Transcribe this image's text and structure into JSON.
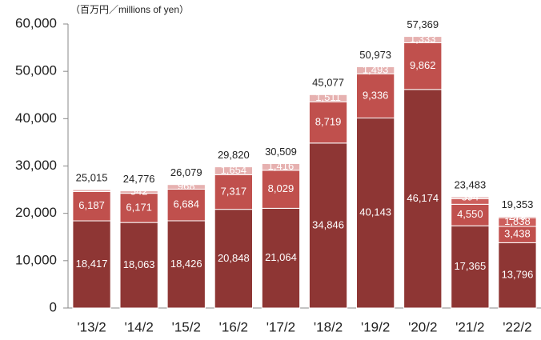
{
  "chart_data": {
    "type": "stacked_bar",
    "subtitle": "（百万円／millions of yen）",
    "categories": [
      "'13/2",
      "'14/2",
      "'15/2",
      "'16/2",
      "'17/2",
      "'18/2",
      "'19/2",
      "'20/2",
      "'21/2",
      "'22/2"
    ],
    "series": [
      {
        "color": "#8e3634",
        "values": [
          18417,
          18063,
          18426,
          20848,
          21064,
          34846,
          40143,
          46174,
          17365,
          13796
        ],
        "value_labels": [
          "18,417",
          "18,063",
          "18,426",
          "20,848",
          "21,064",
          "34,846",
          "40,143",
          "46,174",
          "17,365",
          "13,796"
        ]
      },
      {
        "color": "#c0504d",
        "values": [
          6187,
          6171,
          6684,
          7317,
          8029,
          8719,
          9336,
          9862,
          4550,
          3438
        ],
        "value_labels": [
          "6,187",
          "6,171",
          "6,684",
          "7,317",
          "8,029",
          "8,719",
          "9,336",
          "9,862",
          "4,550",
          "3,438"
        ]
      },
      {
        "color": "#cd5f5c",
        "values": [
          null,
          null,
          null,
          null,
          null,
          null,
          null,
          null,
          1174,
          1838
        ],
        "value_labels": [
          null,
          null,
          null,
          null,
          null,
          null,
          null,
          null,
          null,
          "1,838"
        ]
      },
      {
        "color": "#e6b1b0",
        "values": [
          411,
          542,
          968,
          1654,
          1416,
          1511,
          1493,
          1333,
          394,
          279
        ],
        "value_labels": [
          null,
          "542",
          "968",
          "1,654",
          "1,416",
          "1,511",
          "1,493",
          "1,333",
          "394",
          "279"
        ]
      }
    ],
    "totals": [
      25015,
      24776,
      26079,
      29820,
      30509,
      45077,
      50973,
      57369,
      23483,
      19353
    ],
    "total_labels": [
      "25,015",
      "24,776",
      "26,079",
      "29,820",
      "30,509",
      "45,077",
      "50,973",
      "57,369",
      "23,483",
      "19,353"
    ],
    "ylim": [
      0,
      60000
    ],
    "yticks": [
      0,
      {
        "value": 10000,
        "label": "10,000"
      },
      {
        "value": 20000,
        "label": "20,000"
      },
      {
        "value": 30000,
        "label": "30,000"
      },
      {
        "value": 40000,
        "label": "40,000"
      },
      {
        "value": 50000,
        "label": "50,000"
      },
      {
        "value": 60000,
        "label": "60,000"
      }
    ],
    "grid": false
  }
}
